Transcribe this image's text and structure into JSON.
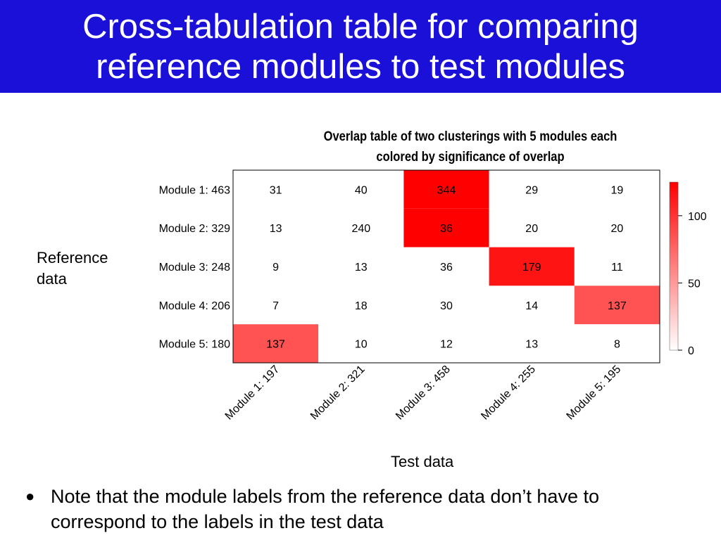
{
  "slide": {
    "title_line1": "Cross-tabulation table for comparing",
    "title_line2": "reference modules to test modules",
    "colors": {
      "title_bg": "#1b10d8",
      "title_text": "#ffffff",
      "high": "#ff0000",
      "low": "#ffffff"
    },
    "y_group_label_line1": "Reference",
    "y_group_label_line2": "data",
    "x_group_label": "Test data",
    "bullet_icon": "bullet-dot",
    "bullet_text": "Note that the module labels from the reference data don’t have to correspond to the labels in the test data"
  },
  "chart_data": {
    "type": "heatmap",
    "title_line1": "Overlap table of two clusterings with 5 modules each",
    "title_line2": "colored by significance of overlap",
    "row_labels": [
      "Module 1: 463",
      "Module 2: 329",
      "Module 3: 248",
      "Module 4: 206",
      "Module 5: 180"
    ],
    "col_labels": [
      "Module 1: 197",
      "Module 2: 321",
      "Module 3: 458",
      "Module 4: 255",
      "Module 5: 195"
    ],
    "values": [
      [
        31,
        40,
        344,
        29,
        19
      ],
      [
        13,
        240,
        36,
        20,
        20
      ],
      [
        9,
        13,
        36,
        179,
        11
      ],
      [
        7,
        18,
        30,
        14,
        137
      ],
      [
        137,
        10,
        12,
        13,
        8
      ]
    ],
    "significance": [
      [
        0,
        0,
        125,
        0,
        0
      ],
      [
        0,
        0,
        125,
        0,
        0
      ],
      [
        0,
        0,
        0,
        115,
        0
      ],
      [
        0,
        0,
        0,
        0,
        85
      ],
      [
        85,
        0,
        0,
        0,
        0
      ]
    ],
    "colorbar": {
      "ticks": [
        0,
        50,
        100
      ],
      "range": [
        0,
        125
      ]
    }
  }
}
